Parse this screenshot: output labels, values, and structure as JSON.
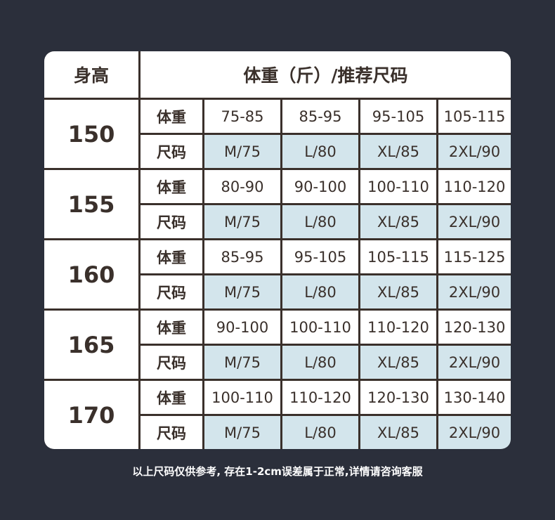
{
  "header": {
    "height_label": "身高",
    "weight_size_label": "体重（斤）/推荐尺码"
  },
  "row_labels": {
    "weight": "体重",
    "size": "尺码"
  },
  "rows": [
    {
      "height": "150",
      "weights": [
        "75-85",
        "85-95",
        "95-105",
        "105-115"
      ],
      "sizes": [
        "M/75",
        "L/80",
        "XL/85",
        "2XL/90"
      ]
    },
    {
      "height": "155",
      "weights": [
        "80-90",
        "90-100",
        "100-110",
        "110-120"
      ],
      "sizes": [
        "M/75",
        "L/80",
        "XL/85",
        "2XL/90"
      ]
    },
    {
      "height": "160",
      "weights": [
        "85-95",
        "95-105",
        "105-115",
        "115-125"
      ],
      "sizes": [
        "M/75",
        "L/80",
        "XL/85",
        "2XL/90"
      ]
    },
    {
      "height": "165",
      "weights": [
        "90-100",
        "100-110",
        "110-120",
        "120-130"
      ],
      "sizes": [
        "M/75",
        "L/80",
        "XL/85",
        "2XL/90"
      ]
    },
    {
      "height": "170",
      "weights": [
        "100-110",
        "110-120",
        "120-130",
        "130-140"
      ],
      "sizes": [
        "M/75",
        "L/80",
        "XL/85",
        "2XL/90"
      ]
    }
  ],
  "footnote": "以上尺码仅供参考, 存在1-2cm误差属于正常,详情请咨询客服",
  "colors": {
    "background": "#2b2f3b",
    "border": "#3a302b",
    "size_cell": "#d3e5ec"
  }
}
